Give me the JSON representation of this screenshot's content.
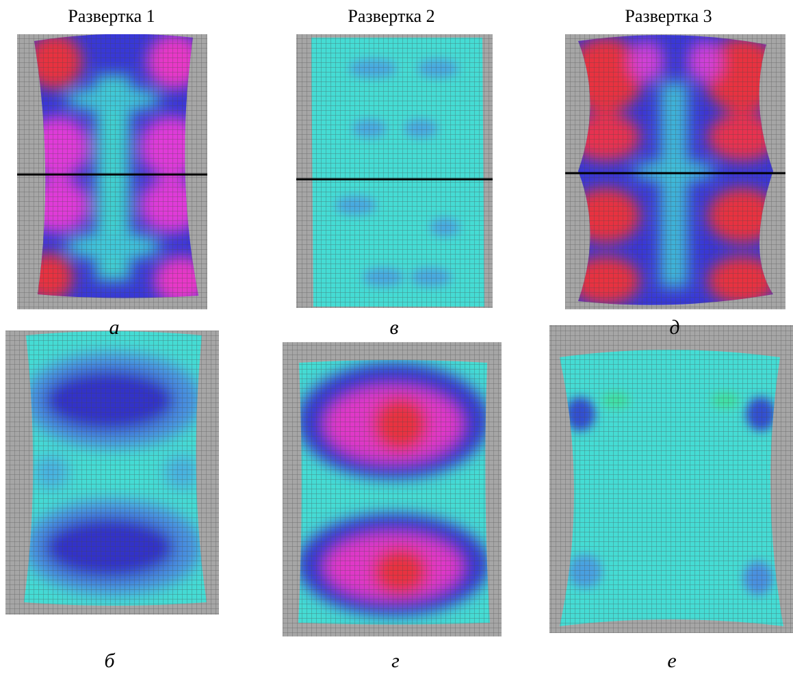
{
  "columns": [
    {
      "title": "Развертка 1"
    },
    {
      "title": "Развертка 2"
    },
    {
      "title": "Развертка 3"
    }
  ],
  "panels": [
    {
      "label": "а"
    },
    {
      "label": "в"
    },
    {
      "label": "д"
    },
    {
      "label": "б"
    },
    {
      "label": "г"
    },
    {
      "label": "е"
    }
  ]
}
